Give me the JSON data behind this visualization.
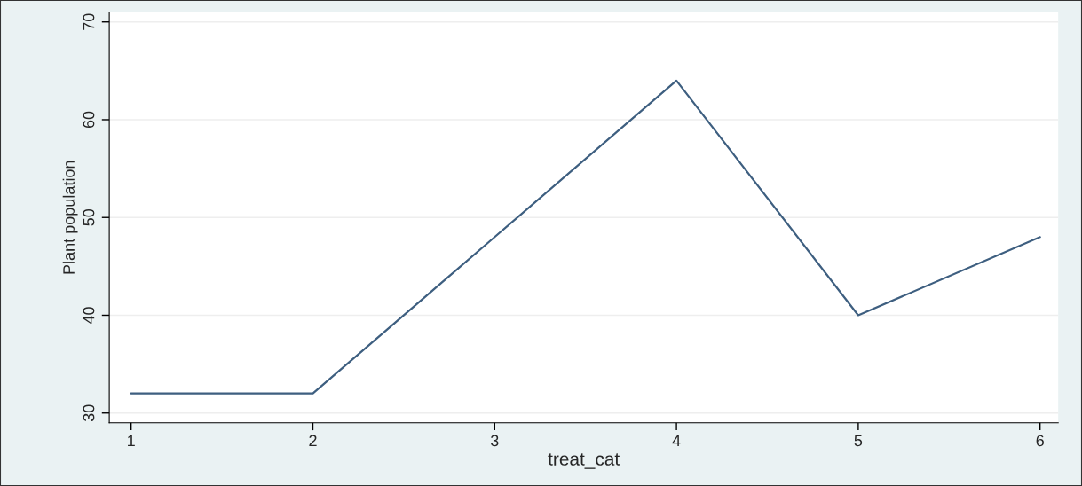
{
  "chart_data": {
    "type": "line",
    "xlabel": "treat_cat",
    "ylabel": "Plant population",
    "x": [
      1,
      2,
      3,
      4,
      5,
      6
    ],
    "series": [
      {
        "color": "#3e5f80",
        "values": [
          32,
          32,
          48,
          64,
          40,
          48
        ]
      }
    ],
    "xlim": [
      0.88,
      6.1
    ],
    "xticks": [
      1,
      2,
      3,
      4,
      5,
      6
    ],
    "ylim": [
      29,
      71
    ],
    "yticks": [
      30,
      40,
      50,
      60,
      70
    ],
    "grid": "y",
    "marker": "none",
    "line_style": "solid"
  }
}
